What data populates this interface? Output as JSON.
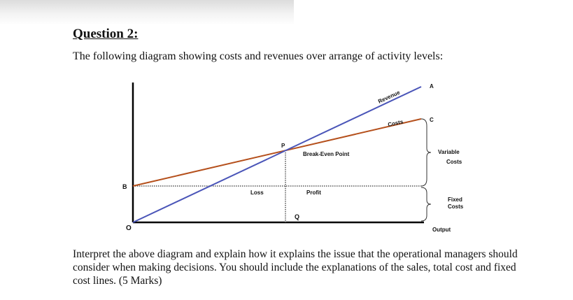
{
  "document": {
    "heading": "Question 2:",
    "intro": "The following diagram showing costs and revenues over arrange of activity levels:",
    "question": "Interpret the above diagram and explain how it explains the issue that the operational managers should consider when making decisions. You should include the explanations of the sales, total cost and fixed cost lines. (5 Marks)"
  },
  "diagram": {
    "origin_label": "O",
    "fixed_cost_label": "B",
    "breakeven_point_label": "P",
    "breakeven_output_label": "Q",
    "revenue_line_label": "Revenue",
    "revenue_end_label": "A",
    "cost_line_label": "Costs",
    "cost_end_label": "C",
    "breakeven_text": "Break-Even Point",
    "loss_text": "Loss",
    "profit_text": "Profit",
    "variable_costs_line1": "Variable",
    "variable_costs_line2": "Costs",
    "fixed_costs_line1": "Fixed",
    "fixed_costs_line2": "Costs",
    "x_axis_label": "Output",
    "colors": {
      "revenue": "#4a55b8",
      "costs": "#b5501c",
      "axes": "#000000"
    }
  }
}
